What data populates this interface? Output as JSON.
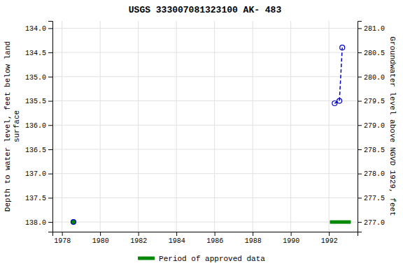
{
  "chart_data": {
    "type": "line",
    "title": "USGS 333007081323100 AK- 483",
    "xlim": [
      1977.5,
      1993.5
    ],
    "xticks": [
      1978,
      1980,
      1982,
      1984,
      1986,
      1988,
      1990,
      1992
    ],
    "ylim": [
      138.2,
      133.85
    ],
    "yticks": [
      {
        "value": 134.0,
        "label": "134.0"
      },
      134.5,
      {
        "value": 135.0,
        "label": "135.0"
      },
      135.5,
      {
        "value": 136.0,
        "label": "136.0"
      },
      136.5,
      {
        "value": 137.0,
        "label": "137.0"
      },
      137.5,
      {
        "value": 138.0,
        "label": "138.0"
      }
    ],
    "y2lim": [
      276.8,
      281.15
    ],
    "y2ticks": [
      {
        "value": 277.0,
        "label": "277.0"
      },
      277.5,
      {
        "value": 278.0,
        "label": "278.0"
      },
      278.5,
      {
        "value": 279.0,
        "label": "279.0"
      },
      279.5,
      {
        "value": 280.0,
        "label": "280.0"
      },
      280.5,
      {
        "value": 281.0,
        "label": "281.0"
      }
    ],
    "ylabel": "Depth to water level, feet below land\nsurface",
    "y2label": "Groundwater level above NGVD 1929, feet",
    "grid": true,
    "legend": "bottom",
    "series": [
      {
        "type": "line",
        "x": [
          1992.3,
          1992.55,
          1992.7
        ],
        "values": [
          135.55,
          135.5,
          134.4
        ],
        "color": "#0000cc",
        "line_style": "dashed",
        "marker": "open-circle"
      },
      {
        "type": "scatter",
        "x": [
          1978.6
        ],
        "values": [
          138.0
        ],
        "color": "#0000cc",
        "colors": [
          "#008800"
        ],
        "marker": "circle"
      },
      {
        "type": "line",
        "name": "Period of approved data",
        "x": [
          1992.05,
          1993.15
        ],
        "values": [
          138.0,
          138.0
        ],
        "color": "#008800",
        "line_style": "solid"
      }
    ]
  }
}
